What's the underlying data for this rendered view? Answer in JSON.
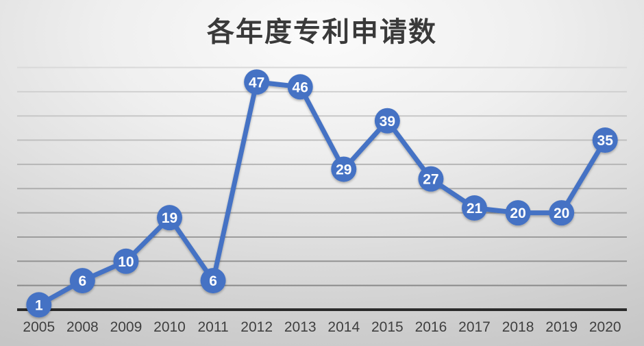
{
  "title": "各年度专利申请数",
  "colors": {
    "accent": "#4472C4",
    "marker_label_text": "#ffffff",
    "axis_line": "#2b2b2b",
    "tick_text": "#3f3f3f",
    "title_text": "#3a3a3a",
    "grid_light": "#d9d9d9",
    "grid_dark": "#8a8a8a"
  },
  "chart_data": {
    "type": "line",
    "title": "各年度专利申请数",
    "categories": [
      "2005",
      "2008",
      "2009",
      "2010",
      "2011",
      "2012",
      "2013",
      "2014",
      "2015",
      "2016",
      "2017",
      "2018",
      "2019",
      "2020"
    ],
    "values": [
      1,
      6,
      10,
      19,
      6,
      47,
      46,
      29,
      39,
      27,
      21,
      20,
      20,
      35
    ],
    "xlabel": "",
    "ylabel": "",
    "ylim": [
      0,
      50
    ],
    "grid_step": 5,
    "grid": "horizontal-only",
    "y_tick_labels_visible": false,
    "legend": "none",
    "data_labels": "centered-on-marker",
    "marker": "filled-circle"
  }
}
